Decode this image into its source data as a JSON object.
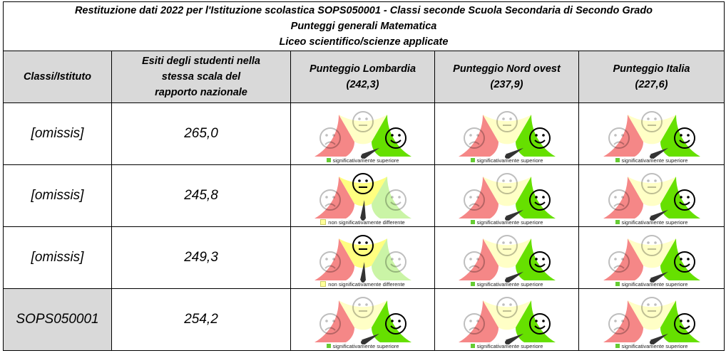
{
  "title": {
    "line1": "Restituzione dati 2022 per l'Istituzione scolastica SOPS050001 - Classi seconde Scuola Secondaria di Secondo Grado",
    "line2": "Punteggi generali Matematica",
    "line3": "Liceo scientifico/scienze applicate"
  },
  "headers": {
    "classi": "Classi/Istituto",
    "esiti": "Esiti degli studenti nella stessa scala del rapporto nazionale",
    "lombardia": "Punteggio Lombardia",
    "lombardia_value": "(242,3)",
    "nordovest": "Punteggio Nord ovest",
    "nordovest_value": "(237,9)",
    "italia": "Punteggio Italia",
    "italia_value": "(227,6)"
  },
  "colors": {
    "red_zone": "#f47a7a",
    "yellow_zone": "#ffff80",
    "green_zone": "#66e000",
    "header_shade": "#d9d9d9",
    "legend_green": "#66cc33",
    "legend_yellow": "#ffff99"
  },
  "rows": [
    {
      "name": "[omissis]",
      "score": "265,0",
      "gauges": [
        {
          "result": "superiore",
          "legend": "significativamente superiore"
        },
        {
          "result": "superiore",
          "legend": "significativamente superiore"
        },
        {
          "result": "superiore",
          "legend": "significativamente superiore"
        }
      ]
    },
    {
      "name": "[omissis]",
      "score": "245,8",
      "gauges": [
        {
          "result": "non_diff",
          "legend": "non significativamente differente"
        },
        {
          "result": "superiore",
          "legend": "significativamente superiore"
        },
        {
          "result": "superiore",
          "legend": "significativamente superiore"
        }
      ]
    },
    {
      "name": "[omissis]",
      "score": "249,3",
      "gauges": [
        {
          "result": "non_diff",
          "legend": "non significativamente differente"
        },
        {
          "result": "superiore",
          "legend": "significativamente superiore"
        },
        {
          "result": "superiore",
          "legend": "significativamente superiore"
        }
      ]
    },
    {
      "name": "SOPS050001",
      "score": "254,2",
      "shaded": true,
      "gauges": [
        {
          "result": "superiore",
          "legend": "significativamente superiore"
        },
        {
          "result": "superiore",
          "legend": "significativamente superiore"
        },
        {
          "result": "superiore",
          "legend": "significativamente superiore"
        }
      ]
    }
  ]
}
